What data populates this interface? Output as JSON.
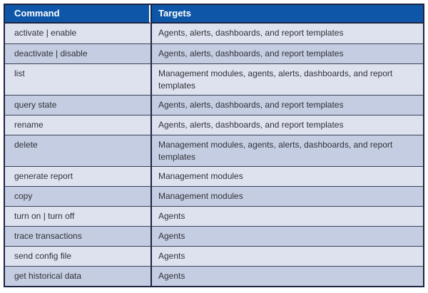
{
  "table": {
    "columns": [
      {
        "label": "Command"
      },
      {
        "label": "Targets"
      }
    ],
    "rows": [
      {
        "command": "activate | enable",
        "targets": "Agents, alerts, dashboards, and report templates"
      },
      {
        "command": "deactivate | disable",
        "targets": "Agents, alerts, dashboards, and report templates"
      },
      {
        "command": "list",
        "targets": "Management modules, agents, alerts, dashboards, and report templates"
      },
      {
        "command": "query state",
        "targets": "Agents, alerts, dashboards, and report templates"
      },
      {
        "command": "rename",
        "targets": "Agents, alerts, dashboards, and report templates"
      },
      {
        "command": "delete",
        "targets": "Management modules, agents, alerts, dashboards, and report templates"
      },
      {
        "command": "generate report",
        "targets": "Management modules"
      },
      {
        "command": "copy",
        "targets": "Management modules"
      },
      {
        "command": "turn on | turn off",
        "targets": "Agents"
      },
      {
        "command": "trace transactions",
        "targets": "Agents"
      },
      {
        "command": "send config file",
        "targets": "Agents"
      },
      {
        "command": "get historical data",
        "targets": "Agents"
      }
    ]
  },
  "colors": {
    "header_bg": "#0e57a8",
    "header_text": "#ffffff",
    "row_light": "#dee2ef",
    "row_dark": "#c5cde2",
    "border_strong": "#1b2340",
    "border_row": "#3a4258",
    "body_text": "#2f3237",
    "page_bg": "#ffffff"
  }
}
